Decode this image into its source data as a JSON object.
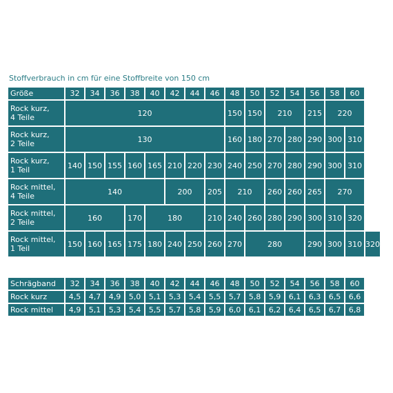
{
  "caption": "Stoffverbrauch in cm für eine Stoffbreite von 150 cm",
  "main_table": {
    "size_label": "Größe",
    "sizes": [
      "32",
      "34",
      "36",
      "38",
      "40",
      "42",
      "44",
      "46",
      "48",
      "50",
      "52",
      "54",
      "56",
      "58",
      "60"
    ],
    "rows": [
      {
        "label": [
          "Rock kurz,",
          "4 Teile"
        ],
        "cells": [
          [
            "120",
            8
          ],
          [
            "150",
            1
          ],
          [
            "150",
            1
          ],
          [
            "210",
            2
          ],
          [
            "215",
            1
          ],
          [
            "220",
            2
          ]
        ]
      },
      {
        "label": [
          "Rock kurz,",
          "2 Teile"
        ],
        "cells": [
          [
            "130",
            8
          ],
          [
            "160",
            1
          ],
          [
            "180",
            1
          ],
          [
            "270",
            1
          ],
          [
            "280",
            1
          ],
          [
            "290",
            1
          ],
          [
            "300",
            1
          ],
          [
            "310",
            1
          ]
        ]
      },
      {
        "label": [
          "Rock kurz,",
          "1 Teil"
        ],
        "cells": [
          [
            "140",
            1
          ],
          [
            "150",
            1
          ],
          [
            "155",
            1
          ],
          [
            "160",
            1
          ],
          [
            "165",
            1
          ],
          [
            "210",
            1
          ],
          [
            "220",
            1
          ],
          [
            "230",
            1
          ],
          [
            "240",
            1
          ],
          [
            "250",
            1
          ],
          [
            "270",
            1
          ],
          [
            "280",
            1
          ],
          [
            "290",
            1
          ],
          [
            "300",
            1
          ],
          [
            "310",
            1
          ]
        ]
      },
      {
        "label": [
          "Rock mittel,",
          "4 Teile"
        ],
        "cells": [
          [
            "140",
            5
          ],
          [
            "200",
            2
          ],
          [
            "205",
            1
          ],
          [
            "210",
            2
          ],
          [
            "260",
            1
          ],
          [
            "260",
            1
          ],
          [
            "265",
            1
          ],
          [
            "270",
            2
          ]
        ]
      },
      {
        "label": [
          "Rock mittel,",
          "2 Teile"
        ],
        "cells": [
          [
            "160",
            3
          ],
          [
            "170",
            1
          ],
          [
            "180",
            3
          ],
          [
            "210",
            1
          ],
          [
            "240",
            1
          ],
          [
            "260",
            1
          ],
          [
            "280",
            1
          ],
          [
            "290",
            1
          ],
          [
            "300",
            1
          ],
          [
            "310",
            1
          ],
          [
            "320",
            1
          ]
        ]
      },
      {
        "label": [
          "Rock mittel,",
          "1 Teil"
        ],
        "cells": [
          [
            "150",
            1
          ],
          [
            "160",
            1
          ],
          [
            "165",
            1
          ],
          [
            "175",
            1
          ],
          [
            "180",
            1
          ],
          [
            "240",
            1
          ],
          [
            "250",
            1
          ],
          [
            "260",
            1
          ],
          [
            "270",
            1
          ],
          [
            "280",
            3
          ],
          [
            "290",
            1
          ],
          [
            "300",
            1
          ],
          [
            "310",
            1
          ],
          [
            "320",
            1
          ]
        ]
      }
    ]
  },
  "tape_table": {
    "label": "Schrägband",
    "sizes": [
      "32",
      "34",
      "36",
      "38",
      "40",
      "42",
      "44",
      "46",
      "48",
      "50",
      "52",
      "54",
      "56",
      "58",
      "60"
    ],
    "rows": [
      {
        "label": "Rock kurz",
        "values": [
          "4,5",
          "4,7",
          "4,9",
          "5,0",
          "5,1",
          "5,3",
          "5,4",
          "5,5",
          "5,7",
          "5,8",
          "5,9",
          "6,1",
          "6,3",
          "6,5",
          "6,6"
        ]
      },
      {
        "label": "Rock mittel",
        "values": [
          "4,9",
          "5,1",
          "5,3",
          "5,4",
          "5,5",
          "5,7",
          "5,8",
          "5,9",
          "6,0",
          "6,1",
          "6,2",
          "6,4",
          "6,5",
          "6,7",
          "6,8"
        ]
      }
    ]
  }
}
